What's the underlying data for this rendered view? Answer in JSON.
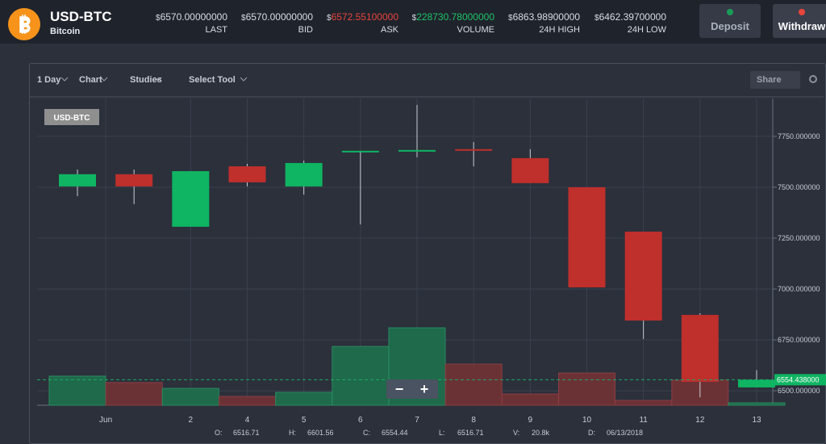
{
  "header": {
    "pair": "USD-BTC",
    "name": "Bitcoin",
    "stats": [
      {
        "prefix": "$",
        "value": "6570.00000000",
        "label": "LAST"
      },
      {
        "prefix": "$",
        "value": "6570.00000000",
        "label": "BID"
      },
      {
        "prefix": "$",
        "value": "6572.55100000",
        "label": "ASK",
        "color": "#e8453c"
      },
      {
        "prefix": "$",
        "value": "228730.78000000",
        "label": "VOLUME",
        "color": "#1fc46a"
      },
      {
        "prefix": "$",
        "value": "6863.98900000",
        "label": "24H HIGH"
      },
      {
        "prefix": "$",
        "value": "6462.39700000",
        "label": "24H LOW"
      }
    ],
    "buttons": [
      "Deposit",
      "Withdraw"
    ]
  },
  "toolbar": {
    "items": [
      "1 Day",
      "Chart",
      "Studies",
      "Select Tool"
    ],
    "share": "Share"
  },
  "chart_data": {
    "type": "candlestick",
    "badge": "USD-BTC",
    "month_label": "Jun",
    "categories": [
      null,
      null,
      "2",
      "4",
      "5",
      "6",
      "7",
      "8",
      "9",
      "10",
      "11",
      "12",
      "13"
    ],
    "open": [
      7504,
      7564,
      7306,
      7603,
      7504,
      7675,
      7675,
      7687,
      7643,
      7500,
      7282,
      6873,
      6516.71
    ],
    "high": [
      7587,
      7587,
      7579,
      7615,
      7631,
      7679,
      7905,
      7722,
      7687,
      7500,
      7282,
      6881,
      6601.56
    ],
    "low": [
      7456,
      7417,
      7306,
      7504,
      7464,
      7317,
      7647,
      7603,
      7520,
      7008,
      6754,
      6468,
      6516.71
    ],
    "close": [
      7564,
      7504,
      7579,
      7524,
      7619,
      7679,
      7683,
      7679,
      7520,
      7008,
      6845,
      6544,
      6554.44
    ],
    "volume": [
      250,
      195,
      145,
      76,
      111,
      505,
      665,
      353,
      97,
      277,
      42,
      215,
      20.8
    ],
    "up_color": "#0fb562",
    "down_color": "#bf2f2c",
    "up_volume_color": "#1e6a4b",
    "down_volume_color": "#6b3236",
    "ylim": [
      6429,
      7936
    ],
    "yticks": [
      {
        "value": 6500,
        "label": "6500.000000"
      },
      {
        "value": 6750,
        "label": "6750.000000"
      },
      {
        "value": 7000,
        "label": "7000.000000"
      },
      {
        "value": 7250,
        "label": "7250.000000"
      },
      {
        "value": 7500,
        "label": "7500.000000"
      },
      {
        "value": 7750,
        "label": "7750.000000"
      }
    ],
    "volume_lim": [
      0,
      700
    ],
    "last_price": {
      "value": 6554.438,
      "label": "6554.438000"
    },
    "grid": true,
    "zoom": [
      "−",
      "+"
    ],
    "readout": [
      {
        "label": "O:",
        "value": "6516.71"
      },
      {
        "label": "H:",
        "value": "6601.56"
      },
      {
        "label": "C:",
        "value": "6554.44"
      },
      {
        "label": "L:",
        "value": "6516.71"
      },
      {
        "label": "V:",
        "value": "20.8k"
      },
      {
        "label": "D:",
        "value": "06/13/2018"
      }
    ]
  }
}
